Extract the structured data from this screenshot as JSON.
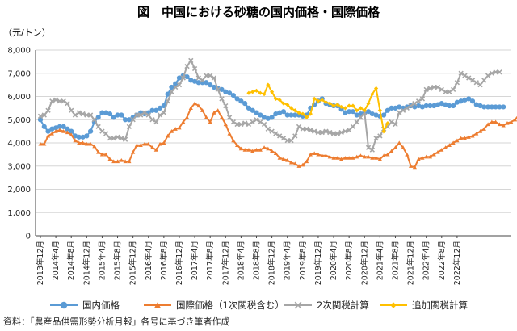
{
  "chart_data": {
    "type": "line",
    "title": "図　中国における砂糖の国内価格・国際価格",
    "unit_label": "（元/トン）",
    "ylim": [
      0,
      8000
    ],
    "yticks": [
      "0",
      "1,000",
      "2,000",
      "3,000",
      "4,000",
      "5,000",
      "6,000",
      "7,000",
      "8,000"
    ],
    "ytick_values": [
      0,
      1000,
      2000,
      3000,
      4000,
      5000,
      6000,
      7000,
      8000
    ],
    "x_labels": [
      "2013年12月",
      "2014年4月",
      "2014年8月",
      "2014年12月",
      "2015年4月",
      "2015年8月",
      "2015年12月",
      "2016年4月",
      "2016年8月",
      "2016年12月",
      "2017年4月",
      "2017年8月",
      "2017年12月",
      "2018年4月",
      "2018年8月",
      "2018年12月",
      "2019年4月",
      "2019年8月",
      "2019年12月",
      "2020年4月",
      "2020年8月",
      "2020年12月",
      "2021年4月",
      "2021年8月",
      "2021年12月",
      "2022年4月",
      "2022年8月",
      "2022年12月"
    ],
    "grid": true,
    "legend_position": "bottom",
    "series": [
      {
        "name": "国内価格",
        "color": "#5b9bd5",
        "marker": "circle",
        "start": 0,
        "values": [
          5000,
          4700,
          4500,
          4600,
          4650,
          4700,
          4700,
          4600,
          4500,
          4300,
          4250,
          4250,
          4300,
          4500,
          4900,
          5100,
          5300,
          5300,
          5250,
          5100,
          5200,
          5200,
          5000,
          5000,
          5100,
          5200,
          5300,
          5250,
          5300,
          5400,
          5400,
          5500,
          5600,
          6100,
          6400,
          6550,
          6800,
          6900,
          6850,
          6700,
          6650,
          6600,
          6600,
          6600,
          6500,
          6400,
          6350,
          6300,
          6200,
          6150,
          6050,
          5900,
          5800,
          5700,
          5500,
          5400,
          5300,
          5200,
          5100,
          5050,
          5100,
          5250,
          5300,
          5350,
          5200,
          5200,
          5200,
          5200,
          5150,
          5200,
          5500,
          5650,
          5800,
          5900,
          5700,
          5650,
          5600,
          5600,
          5450,
          5300,
          5350,
          5350,
          5200,
          5250,
          5300,
          5350,
          5250,
          5200,
          5150,
          5200,
          5400,
          5500,
          5500,
          5550,
          5500,
          5550,
          5600,
          5550,
          5600,
          5550,
          5600,
          5600,
          5600,
          5650,
          5700,
          5650,
          5600,
          5600,
          5750,
          5800,
          5850,
          5900,
          5800,
          5650,
          5600,
          5550,
          5550,
          5550,
          5550,
          5550,
          5550
        ]
      },
      {
        "name": "国際価格（1次関税含む）",
        "color": "#ed7d31",
        "marker": "triangle",
        "start": 0,
        "values": [
          3950,
          3950,
          4300,
          4400,
          4500,
          4550,
          4500,
          4450,
          4350,
          4100,
          4000,
          4000,
          3950,
          3950,
          3850,
          3600,
          3500,
          3500,
          3300,
          3200,
          3200,
          3250,
          3200,
          3200,
          3600,
          3900,
          3900,
          3950,
          3950,
          3800,
          3700,
          3950,
          4000,
          4300,
          4500,
          4600,
          4650,
          4900,
          5100,
          5500,
          5700,
          5600,
          5400,
          5100,
          4900,
          5300,
          5400,
          5100,
          4800,
          4400,
          4100,
          3900,
          3750,
          3700,
          3700,
          3650,
          3700,
          3700,
          3800,
          3750,
          3650,
          3550,
          3350,
          3300,
          3250,
          3150,
          3100,
          3000,
          3050,
          3200,
          3500,
          3550,
          3500,
          3450,
          3450,
          3400,
          3350,
          3350,
          3300,
          3350,
          3350,
          3350,
          3400,
          3450,
          3400,
          3400,
          3350,
          3350,
          3300,
          3450,
          3500,
          3650,
          3800,
          4000,
          3800,
          3500,
          3000,
          2950,
          3300,
          3350,
          3400,
          3400,
          3500,
          3600,
          3700,
          3800,
          3900,
          4000,
          4100,
          4200,
          4200,
          4250,
          4300,
          4400,
          4500,
          4600,
          4800,
          4900,
          4900,
          4800,
          4750,
          4850,
          4900,
          5000,
          5200,
          5300,
          5200,
          5100,
          5150,
          5250,
          5350,
          5400,
          5400,
          5400
        ]
      },
      {
        "name": "2次関税計算",
        "color": "#a6a6a6",
        "marker": "x",
        "start": 0,
        "values": [
          5150,
          5200,
          5400,
          5800,
          5850,
          5800,
          5800,
          5700,
          5400,
          5200,
          5300,
          5250,
          5200,
          5200,
          5000,
          4700,
          4500,
          4400,
          4200,
          4200,
          4250,
          4200,
          4150,
          4700,
          5000,
          5200,
          5200,
          5300,
          5200,
          5000,
          4900,
          5200,
          5300,
          5800,
          6200,
          6400,
          6500,
          6800,
          7300,
          7550,
          7200,
          6800,
          6700,
          6900,
          6900,
          6800,
          6300,
          5900,
          5600,
          5100,
          4900,
          4800,
          4800,
          4850,
          4800,
          4900,
          5000,
          4900,
          4800,
          4600,
          4500,
          4400,
          4300,
          4200,
          4100,
          4100,
          4300,
          4700,
          4600,
          4600,
          4550,
          4500,
          4450,
          4450,
          4500,
          4450,
          4400,
          4400,
          4450,
          4500,
          4550,
          4700,
          4900,
          5100,
          5300,
          3800,
          3700,
          4200,
          4300,
          4600,
          4700,
          4900,
          4800,
          5300,
          5400,
          5500,
          5600,
          5700,
          5800,
          5900,
          6300,
          6350,
          6400,
          6400,
          6300,
          6200,
          6200,
          6300,
          6600,
          7000,
          6900,
          6800,
          6700,
          6600,
          6500,
          6700,
          6900,
          7000,
          7050,
          7050
        ]
      },
      {
        "name": "追加関税計算",
        "color": "#ffc000",
        "marker": "diamond",
        "start": 54,
        "values": [
          6150,
          6200,
          6250,
          6150,
          6100,
          6500,
          6200,
          5900,
          5850,
          5700,
          5650,
          5500,
          5400,
          5300,
          5250,
          5100,
          5250,
          5900,
          5800,
          5850,
          5750,
          5700,
          5600,
          5650,
          5550,
          5500,
          5600,
          5600,
          5400,
          5500,
          5400,
          5700,
          6100,
          6350,
          5400,
          4500,
          4850
        ]
      }
    ]
  },
  "source": "資料：「農産品供需形勢分析月報」各号に基づき筆者作成"
}
